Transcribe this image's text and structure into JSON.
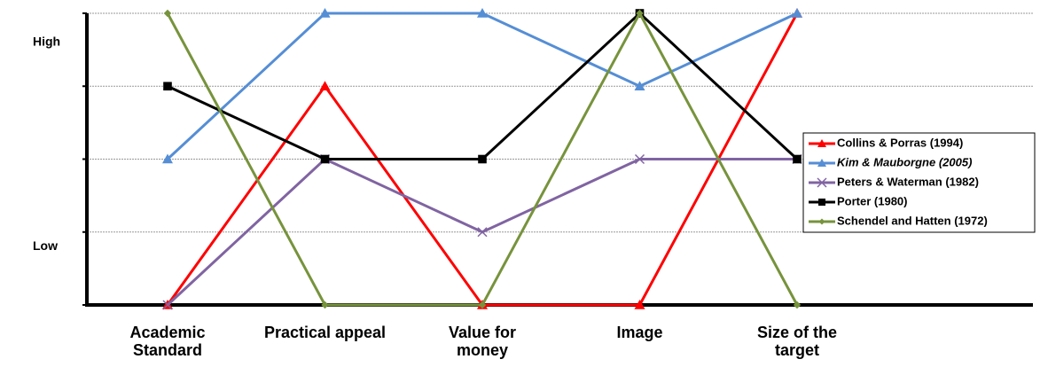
{
  "chart_data": {
    "type": "line",
    "categories": [
      "Academic Standard",
      "Practical appeal",
      "Value for money",
      "Image",
      "Size of the target"
    ],
    "ylim": [
      0,
      4
    ],
    "yticks": [
      0,
      1,
      2,
      3,
      4
    ],
    "grid": true,
    "y_level_labels": [
      {
        "value": 3.6,
        "label": "High"
      },
      {
        "value": 0.8,
        "label": "Low"
      }
    ],
    "legend": "right",
    "series": [
      {
        "name": "Collins & Porras (1994)",
        "color": "#ff0000",
        "marker": "triangle",
        "values": [
          0,
          3,
          0,
          0,
          4
        ]
      },
      {
        "name": "Kim & Mauborgne (2005)",
        "color": "#558ed5",
        "marker": "triangle",
        "italic": true,
        "values": [
          2,
          4,
          4,
          3,
          4
        ]
      },
      {
        "name": "Peters & Waterman (1982)",
        "color": "#8064a2",
        "marker": "x",
        "values": [
          0,
          2,
          1,
          2,
          2
        ]
      },
      {
        "name": "Porter (1980)",
        "color": "#000000",
        "marker": "square",
        "values": [
          3,
          2,
          2,
          4,
          2
        ]
      },
      {
        "name": "Schendel and Hatten (1972)",
        "color": "#77933c",
        "marker": "diamond",
        "values": [
          4,
          0,
          0,
          4,
          0
        ]
      }
    ]
  }
}
